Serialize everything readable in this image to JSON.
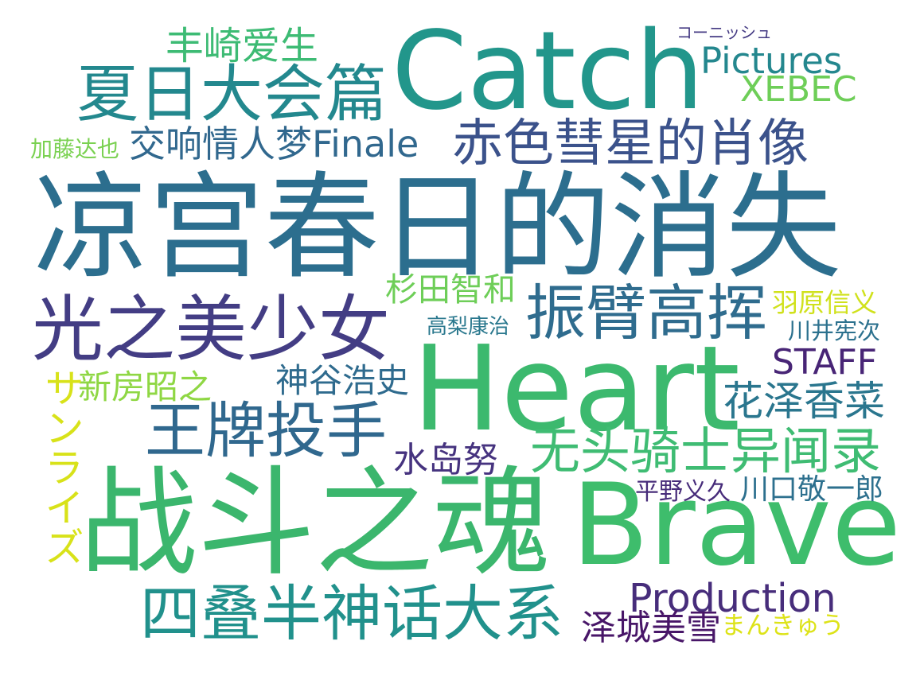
{
  "word_cloud": {
    "background": "#ffffff",
    "words": [
      {
        "text": "凉宫春日的消失",
        "color": "#2c6e8e"
      },
      {
        "text": "战斗之魂",
        "color": "#3bb66d"
      },
      {
        "text": "Brave",
        "color": "#3ebd6c"
      },
      {
        "text": "Heart",
        "color": "#3cb96e"
      },
      {
        "text": "Catch",
        "color": "#22968b"
      },
      {
        "text": "光之美少女",
        "color": "#433d84"
      },
      {
        "text": "夏日大会篇",
        "color": "#23888e"
      },
      {
        "text": "振臂高挥",
        "color": "#2f6c8e"
      },
      {
        "text": "王牌投手",
        "color": "#30688e"
      },
      {
        "text": "四叠半神话大系",
        "color": "#21918c"
      },
      {
        "text": "无头骑士异闻录",
        "color": "#3fbc73"
      },
      {
        "text": "赤色彗星的肖像",
        "color": "#3b528b"
      },
      {
        "text": "交响情人梦Finale",
        "color": "#31688e"
      },
      {
        "text": "丰崎爱生",
        "color": "#3dbb74"
      },
      {
        "text": "Pictures",
        "color": "#24878e"
      },
      {
        "text": "XEBEC",
        "color": "#6ece58"
      },
      {
        "text": "コーニッシュ",
        "color": "#443a83"
      },
      {
        "text": "加藤达也",
        "color": "#7ad151"
      },
      {
        "text": "杉田智和",
        "color": "#6ece58"
      },
      {
        "text": "高梨康治",
        "color": "#2a788e"
      },
      {
        "text": "羽原信义",
        "color": "#d0e11c"
      },
      {
        "text": "川井宪次",
        "color": "#2c718e"
      },
      {
        "text": "STAFF",
        "color": "#482576"
      },
      {
        "text": "神谷浩史",
        "color": "#2f6b8e"
      },
      {
        "text": "新房昭之",
        "color": "#8fd744"
      },
      {
        "text": "サンライズ",
        "color": "#d8e219"
      },
      {
        "text": "花泽香菜",
        "color": "#2a768e"
      },
      {
        "text": "水岛努",
        "color": "#46337f"
      },
      {
        "text": "平野义久",
        "color": "#472c7a"
      },
      {
        "text": "川口敬一郎",
        "color": "#2d708e"
      },
      {
        "text": "Production",
        "color": "#472d7b"
      },
      {
        "text": "泽城美雪",
        "color": "#481668"
      },
      {
        "text": "まんきゅう",
        "color": "#dde318"
      }
    ]
  }
}
